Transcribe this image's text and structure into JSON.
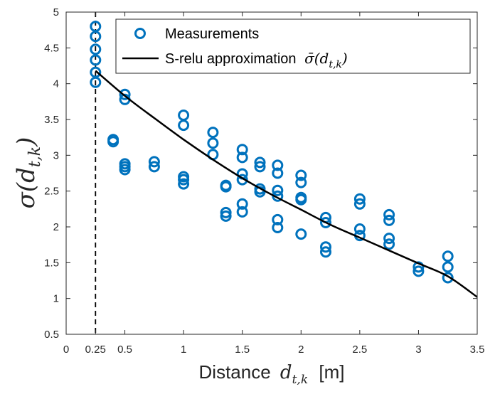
{
  "chart_data": {
    "type": "scatter",
    "xlabel": "Distance",
    "xlabel_math": "d",
    "xlabel_math_sub": "t,k",
    "xlabel_unit": "[m]",
    "ylabel": "σ(d",
    "ylabel_sub": "t,k",
    "ylabel_close": ")",
    "xlim": [
      0,
      3.5
    ],
    "ylim": [
      0.5,
      5
    ],
    "xticks": [
      0,
      0.25,
      0.5,
      1,
      1.5,
      2,
      2.5,
      3,
      3.5
    ],
    "xtick_labels": [
      "0",
      "0.25",
      "0.5",
      "1",
      "1.5",
      "2",
      "2.5",
      "3",
      "3.5"
    ],
    "yticks": [
      0.5,
      1,
      1.5,
      2,
      2.5,
      3,
      3.5,
      4,
      4.5,
      5
    ],
    "ytick_labels": [
      "0.5",
      "1",
      "1.5",
      "2",
      "2.5",
      "3",
      "3.5",
      "4",
      "4.5",
      "5"
    ],
    "grid": false,
    "legend_position": "top-right",
    "colors": {
      "measurements": "#0072BD",
      "approximation": "#000000",
      "axis": "#262626"
    },
    "vline": {
      "x": 0.25,
      "style": "dashed"
    },
    "series": [
      {
        "name": "Measurements",
        "kind": "scatter",
        "points": [
          [
            0.25,
            4.8
          ],
          [
            0.25,
            4.66
          ],
          [
            0.25,
            4.48
          ],
          [
            0.25,
            4.33
          ],
          [
            0.25,
            4.16
          ],
          [
            0.25,
            4.02
          ],
          [
            0.4,
            3.22
          ],
          [
            0.4,
            3.19
          ],
          [
            0.5,
            3.85
          ],
          [
            0.5,
            3.78
          ],
          [
            0.5,
            2.88
          ],
          [
            0.5,
            2.84
          ],
          [
            0.5,
            2.8
          ],
          [
            0.75,
            2.91
          ],
          [
            0.75,
            2.84
          ],
          [
            1.0,
            3.56
          ],
          [
            1.0,
            3.42
          ],
          [
            1.0,
            2.7
          ],
          [
            1.0,
            2.66
          ],
          [
            1.0,
            2.6
          ],
          [
            1.25,
            3.32
          ],
          [
            1.25,
            3.17
          ],
          [
            1.25,
            3.01
          ],
          [
            1.36,
            2.58
          ],
          [
            1.36,
            2.56
          ],
          [
            1.36,
            2.2
          ],
          [
            1.36,
            2.15
          ],
          [
            1.5,
            3.08
          ],
          [
            1.5,
            2.97
          ],
          [
            1.5,
            2.74
          ],
          [
            1.5,
            2.66
          ],
          [
            1.5,
            2.32
          ],
          [
            1.5,
            2.21
          ],
          [
            1.65,
            2.9
          ],
          [
            1.65,
            2.84
          ],
          [
            1.65,
            2.53
          ],
          [
            1.65,
            2.49
          ],
          [
            1.8,
            2.86
          ],
          [
            1.8,
            2.75
          ],
          [
            1.8,
            2.51
          ],
          [
            1.8,
            2.43
          ],
          [
            1.8,
            2.1
          ],
          [
            1.8,
            1.99
          ],
          [
            2.0,
            2.72
          ],
          [
            2.0,
            2.62
          ],
          [
            2.0,
            2.41
          ],
          [
            2.0,
            2.38
          ],
          [
            2.0,
            1.9
          ],
          [
            2.21,
            2.13
          ],
          [
            2.21,
            2.06
          ],
          [
            2.21,
            1.72
          ],
          [
            2.21,
            1.65
          ],
          [
            2.5,
            2.39
          ],
          [
            2.5,
            2.32
          ],
          [
            2.5,
            1.97
          ],
          [
            2.5,
            1.88
          ],
          [
            2.75,
            2.17
          ],
          [
            2.75,
            2.09
          ],
          [
            2.75,
            1.84
          ],
          [
            2.75,
            1.76
          ],
          [
            3.0,
            1.44
          ],
          [
            3.0,
            1.38
          ],
          [
            3.25,
            1.59
          ],
          [
            3.25,
            1.44
          ],
          [
            3.25,
            1.29
          ]
        ]
      },
      {
        "name": "S-relu approximation",
        "name_math": "σ̄(d",
        "name_math_sub": "t,k",
        "name_math_close": ")",
        "kind": "line",
        "points": [
          [
            0.25,
            4.18
          ],
          [
            0.5,
            3.83
          ],
          [
            0.75,
            3.52
          ],
          [
            1.0,
            3.22
          ],
          [
            1.25,
            2.94
          ],
          [
            1.5,
            2.68
          ],
          [
            1.75,
            2.45
          ],
          [
            2.0,
            2.24
          ],
          [
            2.25,
            2.03
          ],
          [
            2.5,
            1.85
          ],
          [
            2.75,
            1.67
          ],
          [
            3.0,
            1.49
          ],
          [
            3.25,
            1.31
          ],
          [
            3.5,
            1.02
          ]
        ]
      }
    ]
  }
}
